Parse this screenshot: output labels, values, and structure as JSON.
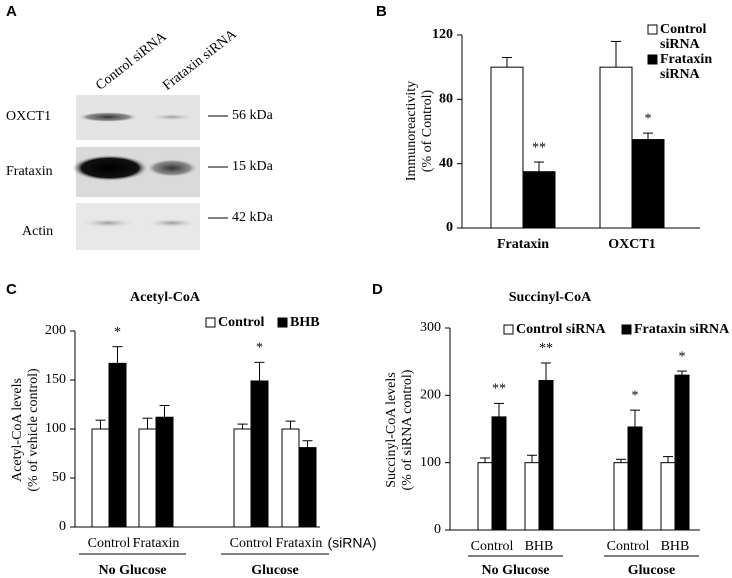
{
  "blot": {
    "panel": "A",
    "columns": [
      "Control siRNA",
      "Frataxin siRNA"
    ],
    "rows": [
      {
        "label": "OXCT1",
        "size": "56 kDa"
      },
      {
        "label": "Frataxin",
        "size": "15 kDa"
      },
      {
        "label": "Actin",
        "size": "42 kDa"
      }
    ]
  },
  "chart_data": [
    {
      "type": "bar",
      "panel": "B",
      "ylabel": [
        "Immunoreactivity",
        "(% of Control)"
      ],
      "categories": [
        "Frataxin",
        "OXCT1"
      ],
      "series": [
        {
          "name": "Control siRNA",
          "color": "#ffffff",
          "values": [
            100,
            100
          ],
          "errors": [
            6,
            16
          ],
          "annotations": [
            null,
            null
          ]
        },
        {
          "name": "Frataxin siRNA",
          "color": "#000000",
          "values": [
            35,
            55
          ],
          "errors": [
            6,
            4
          ],
          "annotations": [
            "**",
            "*"
          ]
        }
      ],
      "ylim": [
        0,
        120
      ],
      "yticks": [
        0,
        40,
        80,
        120
      ]
    },
    {
      "type": "bar",
      "panel": "C",
      "title": "Acetyl-CoA",
      "ylabel": [
        "Acetyl-CoA levels",
        "(% of vehicle control)"
      ],
      "categories": [
        "Control",
        "Frataxin",
        "Control",
        "Frataxin"
      ],
      "x_suffix": "(siRNA)",
      "groups": [
        "No Glucose",
        "Glucose"
      ],
      "series": [
        {
          "name": "Control",
          "color": "#ffffff",
          "values": [
            100,
            100,
            100,
            100
          ],
          "errors": [
            9,
            11,
            5,
            8
          ],
          "annotations": [
            null,
            null,
            null,
            null
          ]
        },
        {
          "name": "BHB",
          "color": "#000000",
          "values": [
            167,
            112,
            149,
            81
          ],
          "errors": [
            17,
            12,
            19,
            7
          ],
          "annotations": [
            "*",
            null,
            "*",
            null
          ]
        }
      ],
      "ylim": [
        0,
        200
      ],
      "yticks": [
        0,
        50,
        100,
        150,
        200
      ]
    },
    {
      "type": "bar",
      "panel": "D",
      "title": "Succinyl-CoA",
      "ylabel": [
        "Succinyl-CoA levels",
        "(% of  siRNA control)"
      ],
      "categories": [
        "Control",
        "BHB",
        "Control",
        "BHB"
      ],
      "groups": [
        "No Glucose",
        "Glucose"
      ],
      "series": [
        {
          "name": "Control siRNA",
          "color": "#ffffff",
          "values": [
            100,
            100,
            100,
            100
          ],
          "errors": [
            7,
            11,
            5,
            9
          ],
          "annotations": [
            null,
            null,
            null,
            null
          ]
        },
        {
          "name": "Frataxin siRNA",
          "color": "#000000",
          "values": [
            168,
            222,
            153,
            230
          ],
          "errors": [
            20,
            26,
            25,
            6
          ],
          "annotations": [
            "**",
            "**",
            "*",
            "*"
          ]
        }
      ],
      "ylim": [
        0,
        300
      ],
      "yticks": [
        0,
        100,
        200,
        300
      ]
    }
  ]
}
